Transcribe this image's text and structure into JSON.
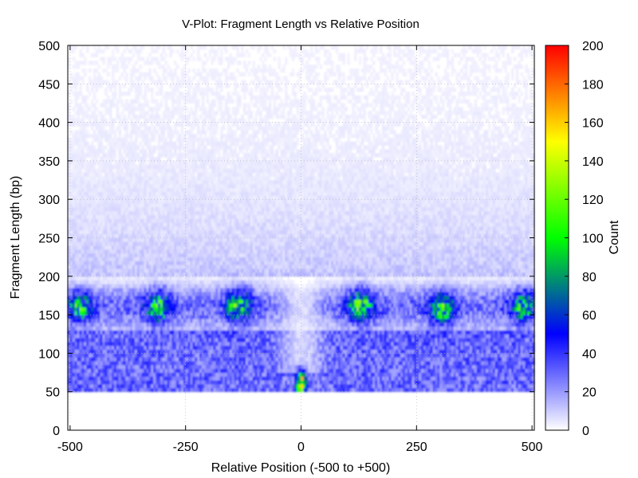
{
  "chart_data": {
    "type": "heatmap",
    "title": "V-Plot: Fragment Length vs Relative Position",
    "xlabel": "Relative Position (-500 to +500)",
    "ylabel": "Fragment Length (bp)",
    "colorbar_label": "Count",
    "xlim": [
      -505,
      505
    ],
    "ylim": [
      0,
      500
    ],
    "x_ticks": [
      -500,
      -250,
      0,
      250,
      500
    ],
    "y_ticks": [
      0,
      50,
      100,
      150,
      200,
      250,
      300,
      350,
      400,
      450,
      500
    ],
    "color_range": [
      0,
      200
    ],
    "color_ticks": [
      0,
      20,
      40,
      60,
      80,
      100,
      120,
      140,
      160,
      180,
      200
    ],
    "colormap": [
      "#ffffff",
      "#0000ff",
      "#00ff00",
      "#ffff00",
      "#ff0000"
    ],
    "grid": true,
    "min_fragment_length": 50,
    "hotspots": [
      {
        "x": -480,
        "y": 160,
        "count": 85
      },
      {
        "x": -310,
        "y": 160,
        "count": 95
      },
      {
        "x": -135,
        "y": 162,
        "count": 100
      },
      {
        "x": 130,
        "y": 162,
        "count": 100
      },
      {
        "x": 305,
        "y": 158,
        "count": 95
      },
      {
        "x": 480,
        "y": 160,
        "count": 85
      },
      {
        "x": 0,
        "y": 62,
        "count": 150
      }
    ]
  }
}
